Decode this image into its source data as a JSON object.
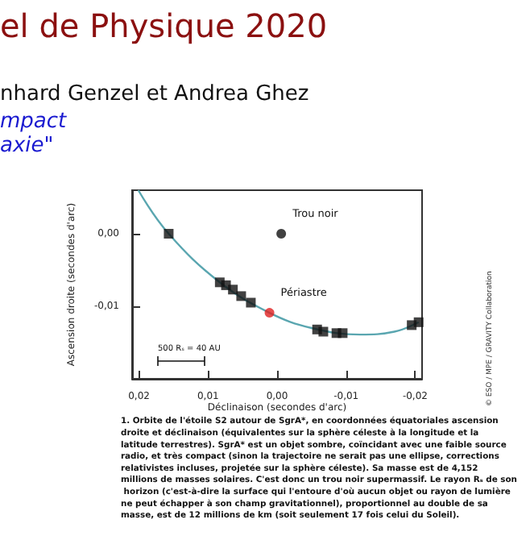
{
  "chart_data": {
    "type": "scatter",
    "title": "el de Physique 2020",
    "subtitle": "nhard Genzel et Andrea Ghez",
    "xlabel": "Déclinaison (secondes d'arc)",
    "ylabel": "Ascension droite (secondes d'arc)",
    "xlim": [
      0.021,
      -0.021
    ],
    "ylim": [
      -0.02,
      0.006
    ],
    "xticks": [
      {
        "value": 0.02,
        "label": "0,02"
      },
      {
        "value": 0.01,
        "label": "0,01"
      },
      {
        "value": 0,
        "label": "0,00"
      },
      {
        "value": -0.01,
        "label": "-0,01"
      },
      {
        "value": -0.02,
        "label": "-0,02"
      }
    ],
    "yticks": [
      {
        "value": 0,
        "label": "0,00"
      },
      {
        "value": -0.01,
        "label": "-0,01"
      }
    ],
    "grid": false,
    "series": [
      {
        "type": "line",
        "color": "#5aa6b0",
        "marker": "none",
        "x": [
          0.0201,
          0.0157,
          0.0083,
          0.0011,
          -0.005,
          -0.012,
          -0.017,
          -0.0205
        ],
        "values": [
          0.006,
          0,
          -0.0067,
          -0.0109,
          -0.013,
          -0.0139,
          -0.0135,
          -0.0122
        ]
      },
      {
        "color": "#111111",
        "marker": "square",
        "x": [
          0.0157,
          0.0083,
          0.0074,
          0.0064,
          0.0052,
          0.0038,
          -0.0058,
          -0.0067,
          -0.0086,
          -0.0095,
          -0.0195,
          -0.0205
        ],
        "values": [
          0,
          -0.0067,
          -0.0071,
          -0.0077,
          -0.0086,
          -0.0095,
          -0.0132,
          -0.0135,
          -0.0137,
          -0.0137,
          -0.0126,
          -0.0122
        ]
      },
      {
        "color": "#e02020",
        "marker": "circle",
        "x": [
          0.0011
        ],
        "values": [
          -0.0109
        ]
      },
      {
        "color": "#111111",
        "marker": "circle",
        "x": [
          -0.0006
        ],
        "values": [
          0
        ]
      }
    ],
    "annotations": [
      "mpact",
      "axie\"",
      {
        "text": "Trou noir",
        "x": -0.0006,
        "y": 0
      },
      {
        "text": "Périastre",
        "x": 0.0011,
        "y": -0.0109
      },
      "500 Rₛ = 40 AU",
      "© ESO / MPE / GRAVITY Collaboration",
      {
        "text": "1. Orbite de l'étoile S2 autour de SgrA*, en coordonnées équatoriales ascension droite et déclinaison (équivalentes sur la sphère céleste à la longitude et la latitude terrestres). SgrA* est un objet sombre, coïncidant avec une faible source radio, et très compact (sinon la trajectoire ne serait pas une ellipse, corrections relativistes incluses, projetée sur la sphère céleste). Sa masse est de 4,152 millions de masses solaires. C'est donc un trou noir supermassif. Le rayon Rₛ de son horizon (c'est-à-dire la surface qui l'entoure d'où aucun objet ou rayon de lumière ne peut échapper à son champ gravitationnel), proportionnel au double de sa masse, est de 12 millions de km (soit seulement 17 fois celui du Soleil)."
      }
    ]
  }
}
